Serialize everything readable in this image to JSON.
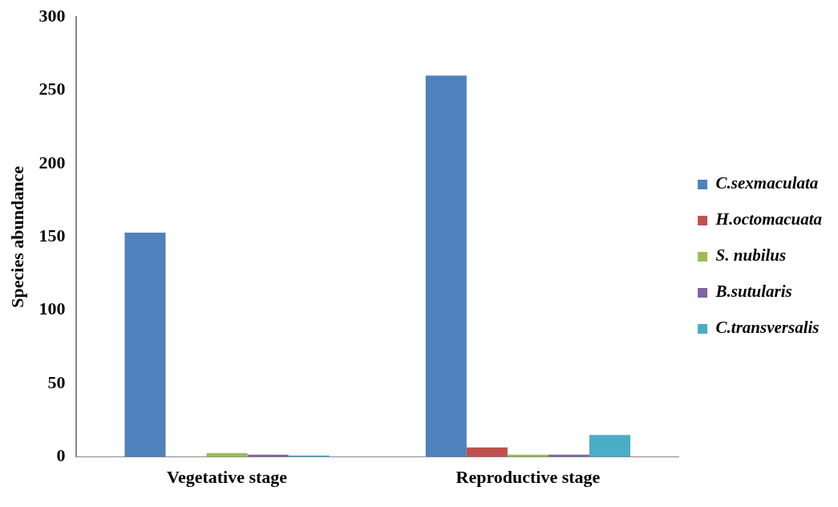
{
  "chart_data": {
    "type": "bar",
    "ylabel": "Species abundance",
    "categories": [
      "Vegetative stage",
      "Reproductive stage"
    ],
    "series": [
      {
        "name": "C.sexmaculata",
        "color": "#4f81bd",
        "values": [
          153,
          260
        ]
      },
      {
        "name": "H.octomacuata",
        "color": "#c0504d",
        "values": [
          0,
          6.5
        ]
      },
      {
        "name": "S. nubilus",
        "color": "#9bbb59",
        "values": [
          2.7,
          1.5
        ]
      },
      {
        "name": "B.sutularis",
        "color": "#8064a2",
        "values": [
          1.6,
          1.5
        ]
      },
      {
        "name": "C.transversalis",
        "color": "#4bacc6",
        "values": [
          1,
          15
        ]
      }
    ],
    "ylim": [
      0,
      300
    ],
    "yticks": [
      0,
      50,
      100,
      150,
      200,
      250,
      300
    ],
    "grid": false,
    "legend": "right"
  }
}
